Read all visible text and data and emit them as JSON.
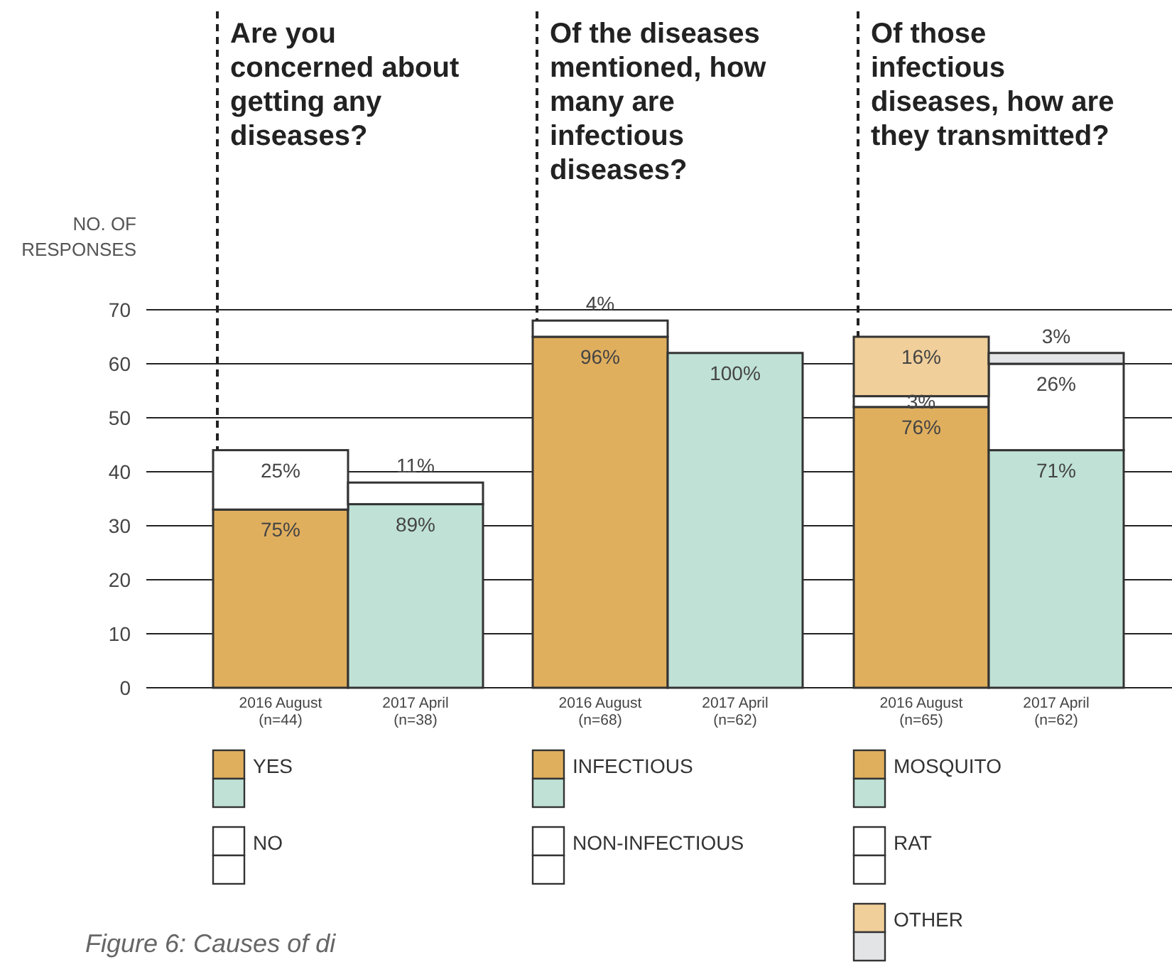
{
  "chart_data": [
    {
      "type": "bar",
      "stacked": true,
      "title": "Are you concerned about getting any diseases?",
      "ylabel": "NO. OF RESPONSES",
      "categories": [
        "2016 August\n(n=44)",
        "2017 April\n(n=38)"
      ],
      "ylim": [
        0,
        70
      ],
      "yticks": [
        0,
        10,
        20,
        30,
        40,
        50,
        60,
        70
      ],
      "grid": "y",
      "legend": "bottom",
      "annotations": [
        "Figure 6: Causes of di",
        {
          "text": "75%",
          "x": "2016 August\n(n=44)",
          "y": 33
        },
        {
          "text": "25%",
          "x": "2016 August\n(n=44)",
          "y": 44
        },
        {
          "text": "89%",
          "x": "2017 April\n(n=38)",
          "y": 34
        },
        {
          "text": "11%",
          "x": "2017 April\n(n=38)",
          "y": 38
        }
      ],
      "series": [
        {
          "name": "YES",
          "color": "#e0af5e",
          "colors": [
            "#e0af5e",
            "#c0e2d6"
          ],
          "values": [
            33,
            34
          ]
        },
        {
          "name": "NO",
          "color": "#ffffff",
          "values": [
            11,
            4
          ]
        }
      ]
    },
    {
      "type": "bar",
      "stacked": true,
      "title": "Of the diseases mentioned, how many are infectious diseases?",
      "categories": [
        "2016 August\n(n=68)",
        "2017 April\n(n=62)"
      ],
      "ylim": [
        0,
        70
      ],
      "yticks": [
        0,
        10,
        20,
        30,
        40,
        50,
        60,
        70
      ],
      "tick_labels": "x",
      "grid": "y",
      "legend": "bottom",
      "annotations": [
        {
          "text": "96%",
          "x": "2016 August\n(n=68)",
          "y": 65
        },
        {
          "text": "4%",
          "x": "2016 August\n(n=68)",
          "y": 68
        },
        {
          "text": "100%",
          "x": "2017 April\n(n=62)",
          "y": 62
        }
      ],
      "series": [
        {
          "name": "INFECTIOUS",
          "color": "#e0af5e",
          "colors": [
            "#e0af5e",
            "#c0e2d6"
          ],
          "values": [
            65,
            62
          ]
        },
        {
          "name": "NON-INFECTIOUS",
          "color": "#ffffff",
          "values": [
            3,
            0
          ]
        }
      ]
    },
    {
      "type": "bar",
      "stacked": true,
      "title": "Of those infectious diseases, how are they transmitted?",
      "categories": [
        "2016 August\n(n=65)",
        "2017 April\n(n=62)"
      ],
      "ylim": [
        0,
        70
      ],
      "yticks": [
        0,
        10,
        20,
        30,
        40,
        50,
        60,
        70
      ],
      "tick_labels": "x",
      "grid": "y",
      "legend": "bottom",
      "annotations": [
        {
          "text": "76%",
          "x": "2016 August\n(n=65)",
          "y": 52
        },
        {
          "text": "3%",
          "x": "2016 August\n(n=65)",
          "y": 54
        },
        {
          "text": "16%",
          "x": "2016 August\n(n=65)",
          "y": 65
        },
        {
          "text": "71%",
          "x": "2017 April\n(n=62)",
          "y": 44
        },
        {
          "text": "26%",
          "x": "2017 April\n(n=62)",
          "y": 60
        },
        {
          "text": "3%",
          "x": "2017 April\n(n=62)",
          "y": 62
        }
      ],
      "series": [
        {
          "name": "MOSQUITO",
          "color": "#e0af5e",
          "colors": [
            "#e0af5e",
            "#c0e2d6"
          ],
          "values": [
            52,
            44
          ]
        },
        {
          "name": "RAT",
          "color": "#ffffff",
          "values": [
            2,
            16
          ]
        },
        {
          "name": "OTHER",
          "color": "#f0cf9a",
          "colors": [
            "#f0cf9a",
            "#e2e4e6"
          ],
          "values": [
            11,
            2
          ]
        }
      ]
    }
  ]
}
